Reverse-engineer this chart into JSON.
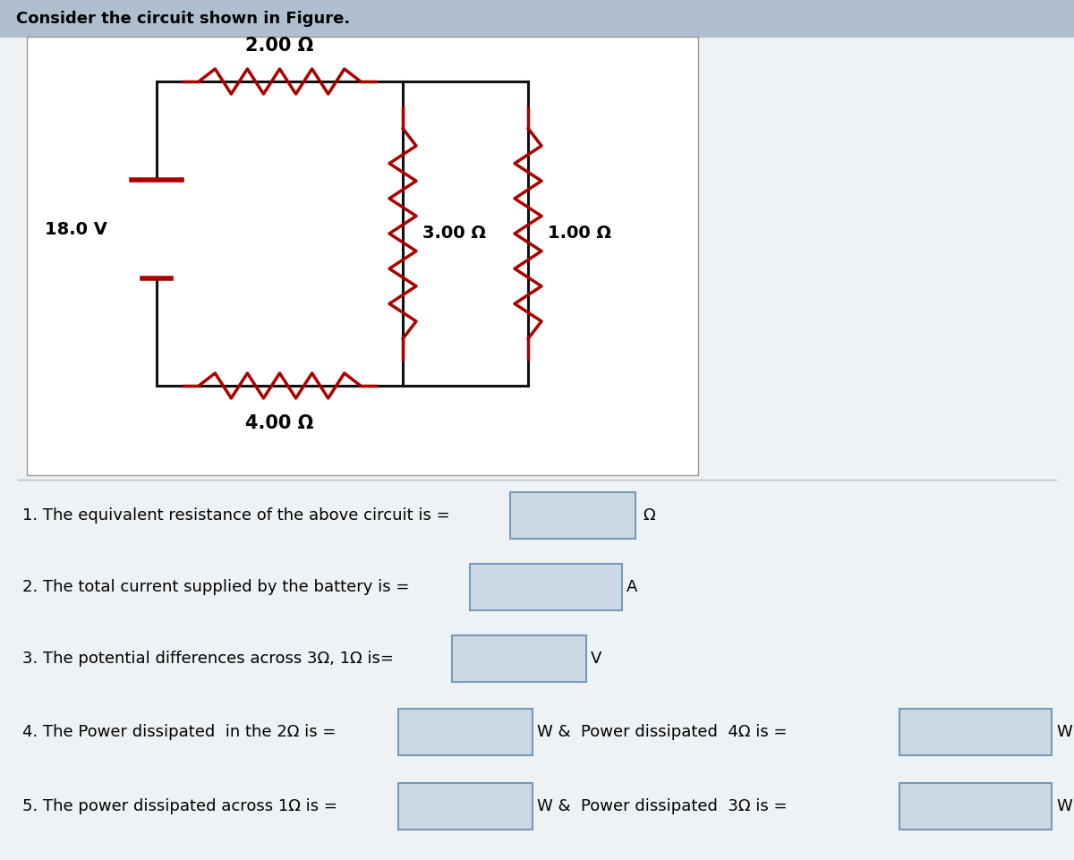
{
  "title": "Consider the circuit shown in Figure.",
  "title_fontsize": 13,
  "bg_color_top": "#b0bfcf",
  "bg_color_main": "#eef2f5",
  "circuit_color": "#111111",
  "resistor_color": "#aa0000",
  "battery_color": "#aa0000",
  "resistors": {
    "R_top": {
      "value": "2.00",
      "unit": "Ω"
    },
    "R_bottom": {
      "value": "4.00",
      "unit": "Ω"
    },
    "R_left_parallel": {
      "value": "3.00",
      "unit": "Ω"
    },
    "R_right_parallel": {
      "value": "1.00",
      "unit": "Ω"
    }
  },
  "battery": {
    "value": "18.0",
    "unit": "V"
  },
  "questions": [
    "1. The equivalent resistance of the above circuit is =",
    "2. The total current supplied by the battery is =",
    "3. The potential differences across 3Ω, 1Ω is=",
    "4. The Power dissipated  in the 2Ω is =",
    "5. The power dissipated across 1Ω is ="
  ],
  "q4_mid": "W &  Power dissipated  4Ω is =",
  "q4_end": "W",
  "q5_mid": "W &  Power dissipated  3Ω is =",
  "q5_end": "W",
  "q1_unit": "Ω",
  "q2_unit": "A",
  "q3_unit": "V",
  "box_facecolor": "#ccd8e4",
  "box_edgecolor": "#7799bb"
}
